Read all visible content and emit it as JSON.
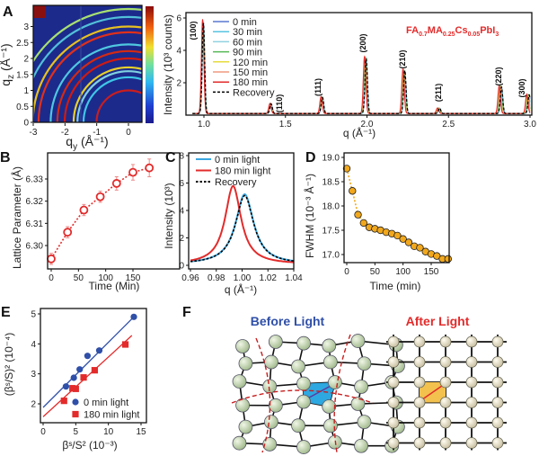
{
  "panels": {
    "A": "A",
    "B": "B",
    "C": "C",
    "D": "D",
    "E": "E",
    "F": "F"
  },
  "chart_data": [
    {
      "id": "A-map",
      "type": "heatmap",
      "xlabel": {
        "main": "q",
        "sub": "y",
        "unit": " (Å⁻¹)"
      },
      "ylabel": {
        "main": "q",
        "sub": "z",
        "unit": " (Å⁻¹)"
      },
      "xlim": [
        -3,
        0.4
      ],
      "ylim": [
        0,
        3.5
      ],
      "xticks": [
        "-3",
        "-2",
        "-1",
        "0"
      ],
      "yticks": [
        "0",
        "0.5",
        "1",
        "1.5",
        "2",
        "2.5",
        "3"
      ],
      "rings": [
        {
          "q": 1.0,
          "color": "#c81e1e"
        },
        {
          "q": 1.41,
          "color": "#3fc6e6"
        },
        {
          "q": 1.6,
          "color": "#7fd0e0"
        },
        {
          "q": 1.72,
          "color": "#e8d02a"
        },
        {
          "q": 2.0,
          "color": "#d01a10"
        },
        {
          "q": 2.23,
          "color": "#d42a12"
        },
        {
          "q": 2.44,
          "color": "#4fc8e0"
        },
        {
          "q": 2.82,
          "color": "#e0301a"
        },
        {
          "q": 3.0,
          "color": "#e8c020"
        },
        {
          "q": 3.3,
          "color": "#52c0d8"
        },
        {
          "q": 3.55,
          "color": "#a8e070"
        }
      ],
      "colors": {
        "background": "#1c2a8c"
      }
    },
    {
      "id": "A-xrd",
      "type": "line",
      "xlabel": "q (Å⁻¹)",
      "ylabel": "Intensity (10³ counts)",
      "xlim": [
        0.93,
        3.0
      ],
      "ylim": [
        0,
        6.3
      ],
      "xticks": [
        "1.0",
        "1.5",
        "2.0",
        "2.5",
        "3.0"
      ],
      "yticks": [
        "2",
        "4",
        "6"
      ],
      "formula": [
        {
          "t": "FA",
          "s": false
        },
        {
          "t": "0.7",
          "s": true
        },
        {
          "t": "MA",
          "s": false
        },
        {
          "t": "0.25",
          "s": true
        },
        {
          "t": "Cs",
          "s": false
        },
        {
          "t": "0.05",
          "s": true
        },
        {
          "t": "PbI",
          "s": false
        },
        {
          "t": "3",
          "s": true
        }
      ],
      "peaks": [
        {
          "label": "(100)",
          "q": 0.997,
          "height": 5.6
        },
        {
          "label": "(110)",
          "q": 1.412,
          "height": 0.6
        },
        {
          "label": "(111)",
          "q": 1.727,
          "height": 1.0
        },
        {
          "label": "(200)",
          "q": 1.995,
          "height": 3.4
        },
        {
          "label": "(210)",
          "q": 2.232,
          "height": 2.65
        },
        {
          "label": "(211)",
          "q": 2.445,
          "height": 0.33
        },
        {
          "label": "(220)",
          "q": 2.825,
          "height": 1.65
        },
        {
          "label": "(300)",
          "q": 2.995,
          "height": 1.15
        }
      ],
      "series": [
        {
          "name": "0 min",
          "time": 0,
          "color": "#5a78d2"
        },
        {
          "name": "30 min",
          "time": 30,
          "color": "#58c4e0"
        },
        {
          "name": "60 min",
          "time": 60,
          "color": "#90d2e2"
        },
        {
          "name": "90 min",
          "time": 90,
          "color": "#56b856"
        },
        {
          "name": "120 min",
          "time": 120,
          "color": "#e6dc3c"
        },
        {
          "name": "150 min",
          "time": 150,
          "color": "#f09a80"
        },
        {
          "name": "180 min",
          "time": 180,
          "color": "#e32b2b"
        },
        {
          "name": "Recovery",
          "time": 0,
          "color": "#000000",
          "dashed": true
        }
      ]
    },
    {
      "id": "B",
      "type": "scatter",
      "xlabel": "Time (Min)",
      "ylabel": "Lattice Parameter (Å)",
      "xlim": [
        -8,
        188
      ],
      "ylim": [
        6.2893,
        6.3412
      ],
      "xticks": [
        "0",
        "50",
        "100",
        "150"
      ],
      "yticks": [
        "6.30",
        "6.31",
        "6.32",
        "6.33"
      ],
      "x": [
        0,
        30,
        60,
        90,
        120,
        150,
        180
      ],
      "y": [
        6.294,
        6.306,
        6.316,
        6.322,
        6.328,
        6.333,
        6.335
      ],
      "err": [
        0.0025,
        0.0025,
        0.0025,
        0.0025,
        0.003,
        0.0035,
        0.004
      ],
      "color": "#e32b2b"
    },
    {
      "id": "C",
      "type": "line",
      "xlabel": "q (Å⁻¹)",
      "ylabel": "Intensity (10³)",
      "xlim": [
        0.96,
        1.04
      ],
      "ylim": [
        0,
        8
      ],
      "xticks": [
        "0.96",
        "0.98",
        "1.00",
        "1.02",
        "1.04"
      ],
      "yticks": [
        "0",
        "2",
        "4",
        "6",
        "8"
      ],
      "series": [
        {
          "name": "0 min light",
          "center": 1.002,
          "height": 5.1,
          "hwhm": 0.0085,
          "color": "#3aa6e0"
        },
        {
          "name": "180 min light",
          "center": 0.993,
          "height": 5.7,
          "hwhm": 0.0075,
          "color": "#e32b2b"
        },
        {
          "name": "Recovery",
          "center": 1.002,
          "height": 5.0,
          "hwhm": 0.0085,
          "color": "#000000",
          "dashed": true
        }
      ]
    },
    {
      "id": "D",
      "type": "scatter",
      "xlabel": "Time (min)",
      "ylabel": "FWHM (10⁻³ Å⁻¹)",
      "xlim": [
        -7,
        187
      ],
      "ylim": [
        16.8,
        19.09
      ],
      "xticks": [
        "0",
        "50",
        "100",
        "150"
      ],
      "yticks": [
        "17.0",
        "17.5",
        "18.0",
        "18.5",
        "19.0"
      ],
      "x": [
        0,
        10,
        20,
        30,
        40,
        50,
        60,
        70,
        80,
        90,
        100,
        110,
        120,
        130,
        140,
        150,
        160,
        170,
        180
      ],
      "y": [
        18.77,
        18.31,
        17.82,
        17.65,
        17.56,
        17.53,
        17.5,
        17.46,
        17.43,
        17.39,
        17.32,
        17.25,
        17.17,
        17.14,
        17.06,
        17.01,
        16.97,
        16.91,
        16.91
      ],
      "color": "#f2a81c"
    },
    {
      "id": "E",
      "type": "scatter",
      "xlabel": "βˢ/S² (10⁻³)",
      "ylabel": "(βˢ/S)² (10⁻⁴)",
      "xlim": [
        -0.8,
        15.5
      ],
      "ylim": [
        1.4,
        5.2
      ],
      "xticks": [
        "0",
        "5",
        "10",
        "15"
      ],
      "yticks": [
        "2",
        "3",
        "4",
        "5"
      ],
      "series": [
        {
          "name": "0 min light",
          "marker": "circle",
          "color": "#2f4fa8",
          "x": [
            3.5,
            4.7,
            5.6,
            6.8,
            8.6,
            13.9
          ],
          "y": [
            2.58,
            2.87,
            3.15,
            3.6,
            3.78,
            4.9
          ],
          "fit": [
            [
              0,
              1.88
            ],
            [
              13.9,
              4.9
            ]
          ]
        },
        {
          "name": "180 min light",
          "marker": "square",
          "color": "#e32b2b",
          "x": [
            3.2,
            4.5,
            5.0,
            6.2,
            7.9,
            12.6
          ],
          "y": [
            2.1,
            2.52,
            2.5,
            2.88,
            3.12,
            3.98
          ],
          "fit": [
            [
              0,
              1.57
            ],
            [
              13.6,
              4.28
            ]
          ]
        }
      ]
    }
  ],
  "diagram_F": {
    "before": "Before Light",
    "after": "After Light",
    "before_color": "#2f4fa8",
    "after_color": "#e32b2b"
  }
}
